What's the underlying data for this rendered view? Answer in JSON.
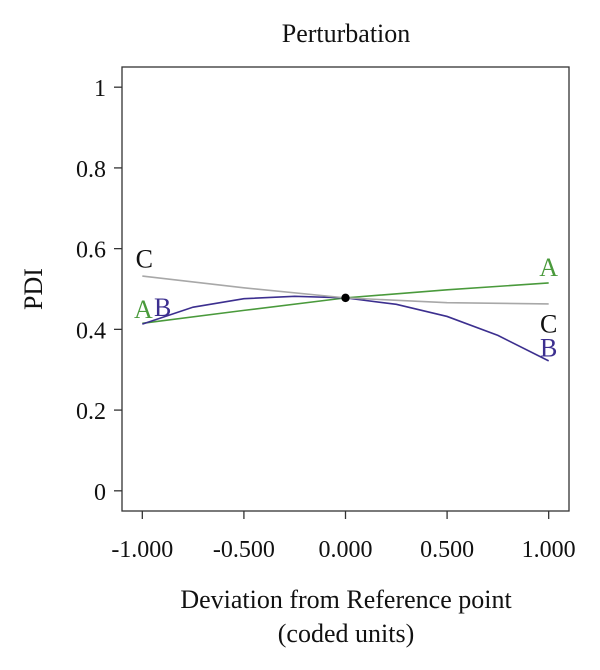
{
  "chart_data": {
    "type": "line",
    "title": "Perturbation",
    "xlabel_line1": "Deviation from Reference point",
    "xlabel_line2": "(coded units)",
    "ylabel": "PDI",
    "xlim": [
      -1.1,
      1.1
    ],
    "ylim": [
      -0.05,
      1.05
    ],
    "x_ticks": [
      -1.0,
      -0.5,
      0.0,
      0.5,
      1.0
    ],
    "x_tick_labels": [
      "-1.000",
      "-0.500",
      "0.000",
      "0.500",
      "1.000"
    ],
    "y_ticks": [
      0,
      0.2,
      0.4,
      0.6,
      0.8,
      1
    ],
    "y_tick_labels": [
      "0",
      "0.2",
      "0.4",
      "0.6",
      "0.8",
      "1"
    ],
    "reference_point": {
      "x": 0.0,
      "y": 0.478
    },
    "grid": false,
    "series": [
      {
        "name": "A",
        "color": "#4a9a3c",
        "x": [
          -1.0,
          -0.5,
          0.0,
          0.5,
          1.0
        ],
        "y": [
          0.415,
          0.447,
          0.478,
          0.498,
          0.515
        ]
      },
      {
        "name": "B",
        "color": "#3c2f8f",
        "x": [
          -1.0,
          -0.75,
          -0.5,
          -0.25,
          0.0,
          0.25,
          0.5,
          0.75,
          1.0
        ],
        "y": [
          0.413,
          0.455,
          0.476,
          0.482,
          0.478,
          0.462,
          0.432,
          0.385,
          0.322
        ]
      },
      {
        "name": "C",
        "color": "#a8a8a8",
        "x": [
          -1.0,
          -0.5,
          0.0,
          0.5,
          1.0
        ],
        "y": [
          0.532,
          0.503,
          0.478,
          0.466,
          0.463
        ]
      }
    ],
    "annotations": [
      {
        "text": "C",
        "x": -0.99,
        "y": 0.575,
        "series": "C"
      },
      {
        "text": "A",
        "x": -0.995,
        "y": 0.45,
        "series": "A"
      },
      {
        "text": "B",
        "x": -0.9,
        "y": 0.455,
        "series": "B"
      },
      {
        "text": "A",
        "x": 1.0,
        "y": 0.555,
        "series": "A"
      },
      {
        "text": "C",
        "x": 1.0,
        "y": 0.415,
        "series": "C"
      },
      {
        "text": "B",
        "x": 1.0,
        "y": 0.355,
        "series": "B"
      }
    ]
  }
}
